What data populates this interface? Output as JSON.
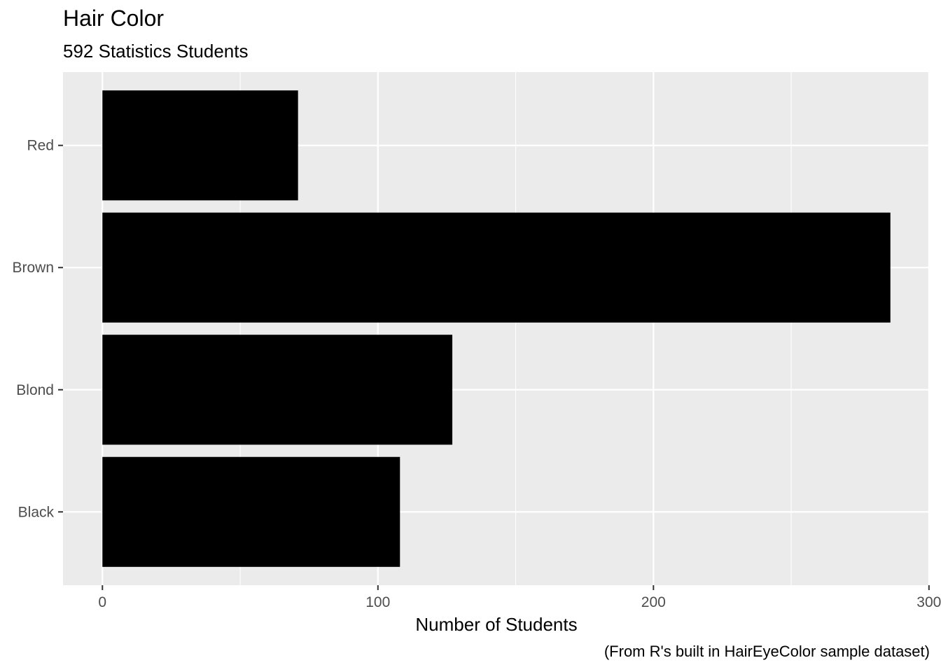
{
  "chart_data": {
    "type": "bar",
    "orientation": "horizontal",
    "title": "Hair Color",
    "subtitle": "592 Statistics Students",
    "caption": "(From R's built in HairEyeColor sample dataset)",
    "xlabel": "Number of Students",
    "ylabel": "",
    "categories": [
      "Black",
      "Blond",
      "Brown",
      "Red"
    ],
    "values": [
      108,
      127,
      286,
      71
    ],
    "xlim": [
      -14.3,
      300.3
    ],
    "x_ticks": [
      0,
      100,
      200,
      300
    ],
    "x_tick_labels": [
      "0",
      "100",
      "200",
      "300"
    ],
    "grid": true,
    "legend": "none",
    "colors": {
      "bar": "#000000",
      "panel": "#ebebeb",
      "grid": "#ffffff",
      "tick_text": "#4d4d4d"
    }
  }
}
